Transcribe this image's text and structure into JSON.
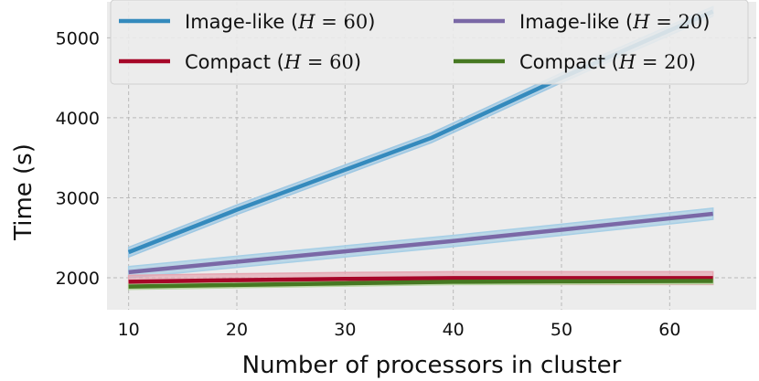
{
  "chart_data": {
    "type": "line",
    "xlabel": "Number of processors in cluster",
    "ylabel": "Time (s)",
    "xlim": [
      8,
      68
    ],
    "ylim": [
      1600,
      5450
    ],
    "xticks": [
      10,
      20,
      30,
      40,
      50,
      60
    ],
    "yticks": [
      2000,
      3000,
      4000,
      5000
    ],
    "grid": true,
    "legend_position": "top",
    "legend_columns": 2,
    "background": "#ececec",
    "series": [
      {
        "name": "Image-like (H = 60)",
        "label_text": "Image-like (",
        "label_var": "H",
        "label_eq": " = ",
        "label_num": "60",
        "label_close": ")",
        "color": "#348abd",
        "band_color": "#9ec8e3",
        "x": [
          10,
          20,
          30,
          38,
          50,
          64
        ],
        "y": [
          2320,
          2850,
          3350,
          3750,
          4500,
          5330
        ],
        "band": 60
      },
      {
        "name": "Image-like (H = 20)",
        "label_text": "Image-like (",
        "label_var": "H",
        "label_eq": " = ",
        "label_num": "20",
        "label_close": ")",
        "color": "#7a68a6",
        "band_color": "#a7cfe6",
        "x": [
          10,
          20,
          30,
          40,
          50,
          64
        ],
        "y": [
          2070,
          2200,
          2330,
          2460,
          2600,
          2800
        ],
        "band": 70
      },
      {
        "name": "Compact (H = 60)",
        "label_text": "Compact (",
        "label_var": "H",
        "label_eq": " = ",
        "label_num": "60",
        "label_close": ")",
        "color": "#a60628",
        "band_color": "#e6a6b2",
        "x": [
          10,
          20,
          30,
          40,
          50,
          64
        ],
        "y": [
          1950,
          1970,
          1985,
          1995,
          1995,
          1995
        ],
        "band": 80
      },
      {
        "name": "Compact (H = 20)",
        "label_text": "Compact (",
        "label_var": "H",
        "label_eq": " = ",
        "label_num": "20",
        "label_close": ")",
        "color": "#467821",
        "band_color": "#b9d6a4",
        "x": [
          10,
          20,
          30,
          40,
          50,
          64
        ],
        "y": [
          1890,
          1910,
          1930,
          1950,
          1955,
          1960
        ],
        "band": 35
      }
    ]
  }
}
